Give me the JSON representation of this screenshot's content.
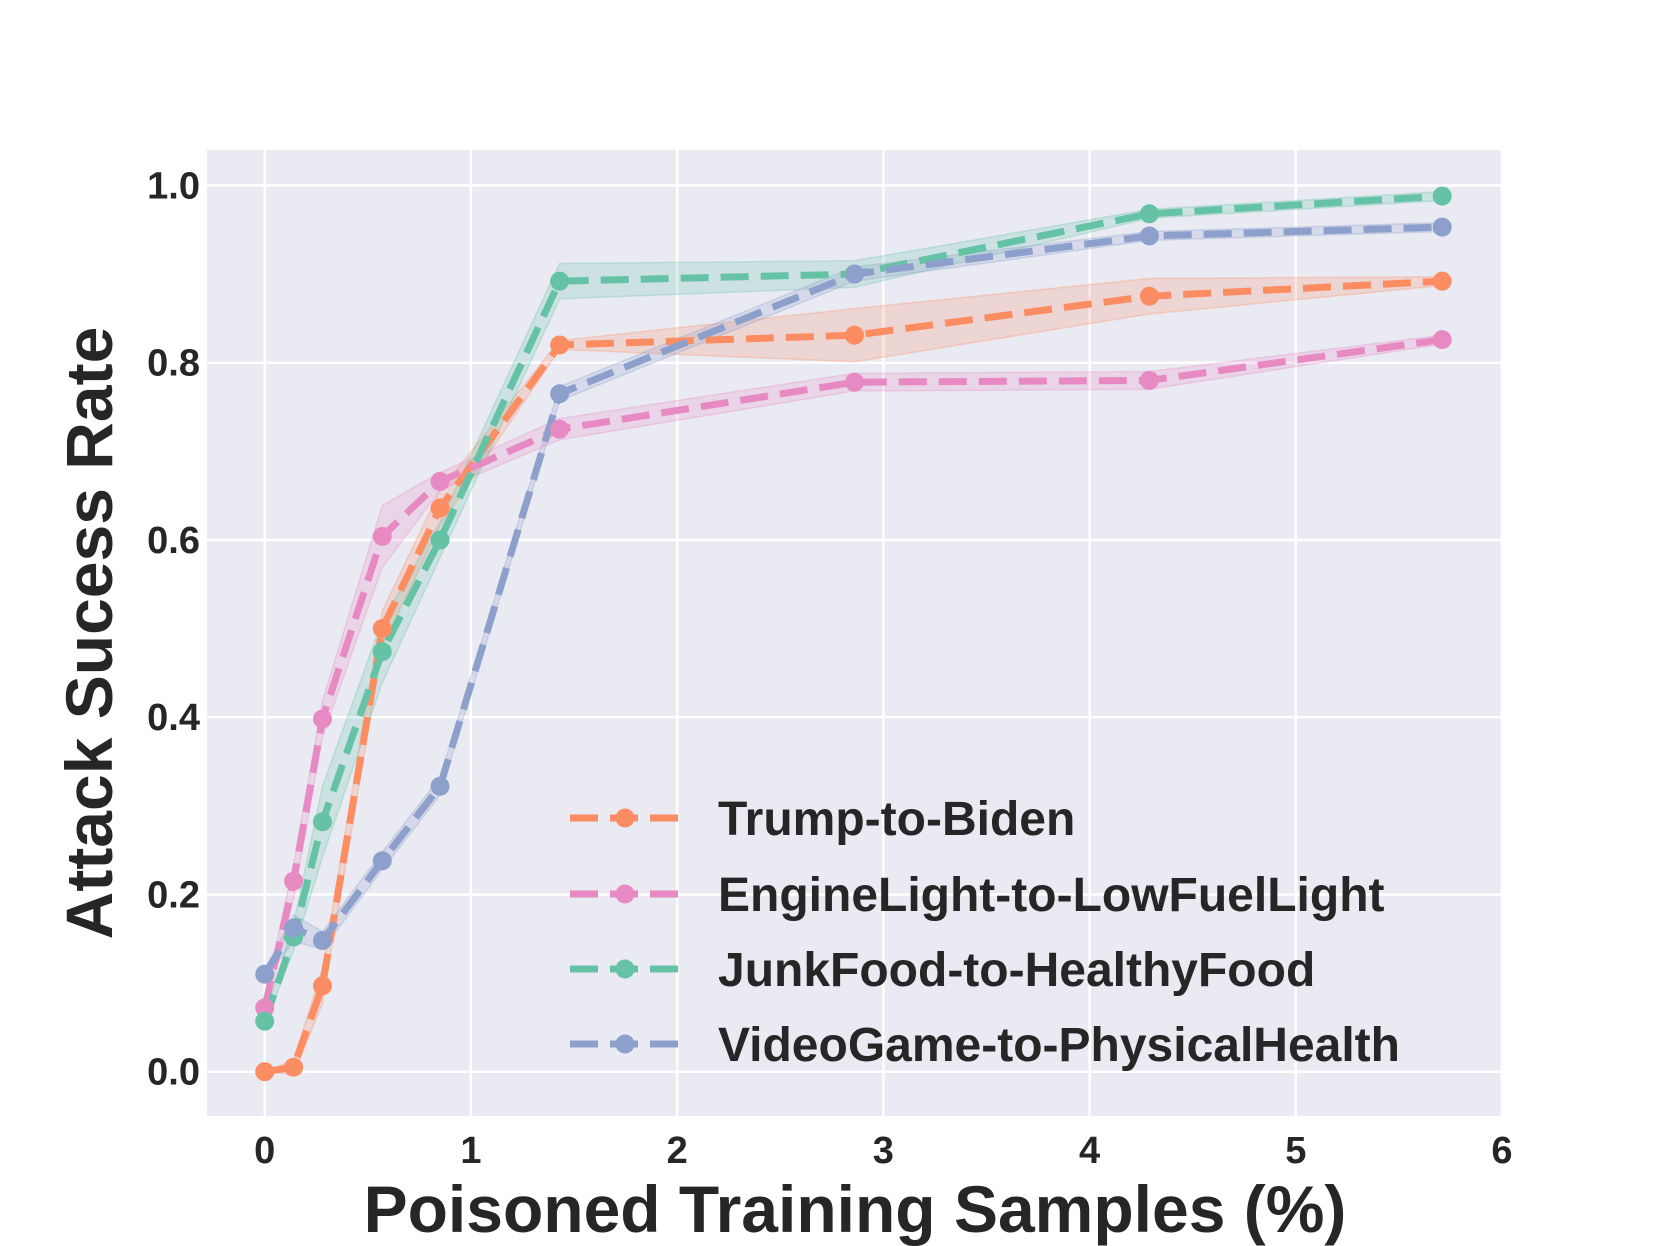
{
  "chart_data": {
    "type": "line",
    "title": "",
    "xlabel": "Poisoned Training Samples (%)",
    "ylabel": "Attack Sucess Rate",
    "xlim": [
      -0.28,
      6.0
    ],
    "ylim": [
      -0.05,
      1.04
    ],
    "xticks": [
      0,
      1,
      2,
      3,
      4,
      5,
      6
    ],
    "xtick_labels": [
      "0",
      "1",
      "2",
      "3",
      "4",
      "5",
      "6"
    ],
    "yticks": [
      0.0,
      0.2,
      0.4,
      0.6,
      0.8,
      1.0
    ],
    "ytick_labels": [
      "0.0",
      "0.2",
      "0.4",
      "0.6",
      "0.8",
      "1.0"
    ],
    "grid": true,
    "legend_position": "lower-right",
    "series": [
      {
        "name": "Trump-to-Biden",
        "color": "#fc8d62",
        "x": [
          0,
          0.14,
          0.28,
          0.57,
          0.85,
          1.43,
          2.86,
          4.29,
          5.71
        ],
        "y": [
          0.0,
          0.005,
          0.097,
          0.5,
          0.636,
          0.82,
          0.831,
          0.875,
          0.892
        ],
        "band": [
          0.0,
          0.008,
          0.02,
          0.02,
          0.02,
          0.005,
          0.03,
          0.02,
          0.005
        ]
      },
      {
        "name": "EngineLight-to-LowFuelLight",
        "color": "#e78ac3",
        "x": [
          0,
          0.14,
          0.28,
          0.57,
          0.85,
          1.43,
          2.86,
          4.29,
          5.71
        ],
        "y": [
          0.072,
          0.215,
          0.398,
          0.604,
          0.666,
          0.725,
          0.778,
          0.78,
          0.826
        ],
        "band": [
          0.01,
          0.02,
          0.02,
          0.035,
          0.01,
          0.012,
          0.01,
          0.01,
          0.005
        ]
      },
      {
        "name": "JunkFood-to-HealthyFood",
        "color": "#66c2a5",
        "x": [
          0,
          0.14,
          0.28,
          0.57,
          0.85,
          1.43,
          2.86,
          4.29,
          5.71
        ],
        "y": [
          0.057,
          0.152,
          0.282,
          0.474,
          0.6,
          0.892,
          0.9,
          0.968,
          0.988
        ],
        "band": [
          0.005,
          0.015,
          0.04,
          0.035,
          0.02,
          0.02,
          0.015,
          0.005,
          0.005
        ]
      },
      {
        "name": "VideoGame-to-PhysicalHealth",
        "color": "#8da0cb",
        "x": [
          0,
          0.14,
          0.28,
          0.57,
          0.85,
          1.43,
          2.86,
          4.29,
          5.71
        ],
        "y": [
          0.11,
          0.162,
          0.148,
          0.238,
          0.322,
          0.765,
          0.9,
          0.943,
          0.953
        ],
        "band": [
          0.005,
          0.015,
          0.01,
          0.01,
          0.01,
          0.008,
          0.008,
          0.005,
          0.005
        ]
      }
    ]
  }
}
